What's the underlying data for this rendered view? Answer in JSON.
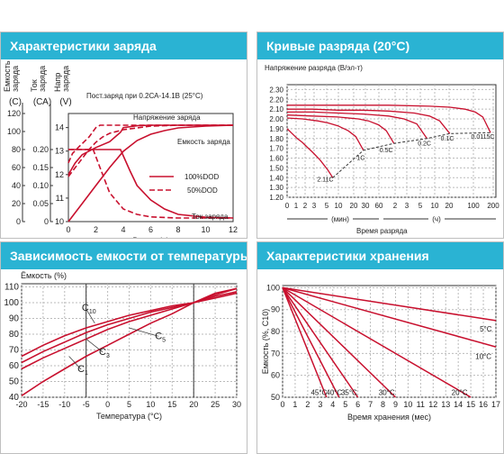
{
  "panels": {
    "p1": {
      "title": "Характеристики заряда"
    },
    "p2": {
      "title": "Кривые разряда (20°C)"
    },
    "p3": {
      "title": "Зависимость емкости от температуры"
    },
    "p4": {
      "title": "Характеристики хранения"
    }
  },
  "chart_data": [
    {
      "type": "line",
      "title": "Пост.заряд при 0.2СА-14.1В (25°С)",
      "xlabel": "Время (ч)",
      "x_ticks": [
        "0",
        "2",
        "4",
        "6",
        "8",
        "10",
        "12"
      ],
      "xlim": [
        0,
        12
      ],
      "axes": [
        {
          "label": "Емкость заряда (С)",
          "unit": "(С)",
          "ticks": [
            "0",
            "20",
            "40",
            "60",
            "80",
            "100",
            "120"
          ],
          "lim": [
            0,
            120
          ]
        },
        {
          "label": "Ток заряда (СА)",
          "unit": "(СА)",
          "ticks": [
            "0",
            "0.05",
            "0.10",
            "0.15",
            "0.20"
          ],
          "lim": [
            0,
            0.3
          ]
        },
        {
          "label": "Напр заряда (V)",
          "unit": "(V)",
          "ticks": [
            "10",
            "11",
            "12",
            "13",
            "14"
          ],
          "lim": [
            10,
            14.6
          ]
        }
      ],
      "annotations": [
        "Напряжение заряда",
        "Емкость заряда",
        "Ток заряда"
      ],
      "legend": {
        "entries": [
          "100%DOD",
          "50%DOD"
        ],
        "position": "center-right"
      },
      "series": [
        {
          "name": "100%DOD",
          "group": "Напряжение заряда",
          "x": [
            0,
            0.5,
            1,
            2,
            3,
            3.8,
            4,
            5,
            6,
            8,
            10,
            12
          ],
          "y": [
            12.0,
            12.5,
            12.85,
            13.15,
            13.4,
            13.8,
            14.0,
            14.08,
            14.1,
            14.1,
            14.1,
            14.1
          ]
        },
        {
          "name": "50%DOD",
          "group": "Напряжение заряда",
          "x": [
            0,
            0.3,
            0.8,
            1.5,
            2,
            2.3,
            3,
            4,
            6,
            8,
            12
          ],
          "y": [
            12.5,
            12.9,
            13.2,
            13.6,
            14.0,
            14.1,
            14.1,
            14.1,
            14.1,
            14.1,
            14.1
          ]
        },
        {
          "name": "100%DOD",
          "group": "Емкость заряда",
          "x": [
            0,
            1,
            2,
            3,
            4,
            5,
            6,
            7,
            8,
            10,
            12
          ],
          "y": [
            0,
            20,
            40,
            60,
            78,
            90,
            97,
            101,
            104,
            106,
            107
          ]
        },
        {
          "name": "50%DOD",
          "group": "Емкость заряда",
          "x": [
            0,
            0.5,
            1,
            1.5,
            2,
            2.5,
            3,
            4,
            5,
            6,
            8,
            12
          ],
          "y": [
            50,
            60,
            70,
            80,
            88,
            94,
            98,
            102,
            104,
            106,
            107,
            107
          ]
        },
        {
          "name": "100%DOD",
          "group": "Ток заряда",
          "x": [
            0,
            1,
            2,
            3,
            3.8,
            4.5,
            5,
            6,
            7,
            8,
            10,
            12
          ],
          "y": [
            0.2,
            0.2,
            0.2,
            0.2,
            0.2,
            0.14,
            0.1,
            0.06,
            0.035,
            0.02,
            0.012,
            0.01
          ]
        },
        {
          "name": "50%DOD",
          "group": "Ток заряда",
          "x": [
            0,
            1,
            1.8,
            2.3,
            3,
            4,
            5,
            6,
            8,
            12
          ],
          "y": [
            0.2,
            0.2,
            0.2,
            0.15,
            0.08,
            0.035,
            0.02,
            0.013,
            0.01,
            0.01
          ]
        }
      ]
    },
    {
      "type": "line",
      "ylabel": "Напряжение разряда (В/эл-т)",
      "xlabel": "Время разряда",
      "x_ticks": [
        "0",
        "1",
        "2",
        "3",
        "5",
        "10",
        "20",
        "30",
        "60",
        "2",
        "3",
        "5",
        "10",
        "20",
        "100",
        "200"
      ],
      "x_units": [
        "(мин)",
        "(ч)"
      ],
      "y_ticks": [
        "1.20",
        "1.30",
        "1.40",
        "1.50",
        "1.60",
        "1.70",
        "1.80",
        "1.90",
        "2.00",
        "2.10",
        "2.20",
        "2.30"
      ],
      "ylim": [
        1.2,
        2.35
      ],
      "series": [
        {
          "name": "2.11C",
          "x_pos": [
            0,
            1,
            2,
            3,
            4,
            5,
            6.5,
            8,
            9
          ],
          "y": [
            1.9,
            1.85,
            1.8,
            1.76,
            1.71,
            1.66,
            1.58,
            1.48,
            1.4
          ]
        },
        {
          "name": "1C",
          "x_pos": [
            0,
            3,
            6,
            8,
            10,
            12,
            13.5,
            15
          ],
          "y": [
            2.01,
            2.0,
            1.98,
            1.96,
            1.93,
            1.88,
            1.82,
            1.68
          ]
        },
        {
          "name": "0.5C",
          "x_pos": [
            0,
            5,
            10,
            14,
            16,
            18,
            19.5,
            21
          ],
          "y": [
            2.04,
            2.03,
            2.02,
            2.0,
            1.98,
            1.94,
            1.88,
            1.75
          ]
        },
        {
          "name": "0.2C",
          "x_pos": [
            0,
            5,
            10,
            15,
            20,
            23,
            25.5,
            27.5
          ],
          "y": [
            2.07,
            2.07,
            2.06,
            2.05,
            2.03,
            2.0,
            1.95,
            1.8
          ]
        },
        {
          "name": "0.1C",
          "x_pos": [
            0,
            5,
            10,
            15,
            20,
            25,
            28,
            30,
            32
          ],
          "y": [
            2.1,
            2.1,
            2.09,
            2.09,
            2.08,
            2.06,
            2.03,
            1.98,
            1.85
          ]
        },
        {
          "name": "0.0115C",
          "x_pos": [
            0,
            10,
            20,
            28,
            32,
            35,
            37,
            38.5,
            40
          ],
          "y": [
            2.14,
            2.14,
            2.14,
            2.13,
            2.12,
            2.1,
            2.07,
            2.02,
            1.86
          ]
        }
      ],
      "cutoff_line": {
        "x_pos": [
          9,
          15,
          21,
          27.5,
          32,
          40
        ],
        "y": [
          1.4,
          1.68,
          1.75,
          1.8,
          1.85,
          1.86
        ]
      }
    },
    {
      "type": "line",
      "ylabel": "Ёмкость (%)",
      "xlabel": "Температура (°С)",
      "x": [
        -20,
        -15,
        -10,
        -5,
        0,
        5,
        10,
        15,
        20,
        25,
        30
      ],
      "x_ticks": [
        "-20",
        "-15",
        "-10",
        "-5",
        "0",
        "5",
        "10",
        "15",
        "20",
        "25",
        "30"
      ],
      "y_ticks": [
        "40",
        "50",
        "60",
        "70",
        "80",
        "90",
        "100",
        "110"
      ],
      "xlim": [
        -20,
        30
      ],
      "ylim": [
        40,
        112
      ],
      "series": [
        {
          "name": "C10",
          "values": [
            66,
            73,
            79,
            84,
            88,
            92,
            95,
            98,
            100,
            103,
            106
          ]
        },
        {
          "name": "C5",
          "values": [
            62,
            69,
            75,
            81,
            86,
            90,
            94,
            97,
            100,
            104,
            107
          ]
        },
        {
          "name": "C3",
          "values": [
            58,
            65,
            71,
            77,
            83,
            88,
            92,
            96,
            100,
            105,
            109
          ]
        },
        {
          "name": "C1",
          "values": [
            41,
            50,
            58,
            66,
            73,
            80,
            87,
            93,
            100,
            106,
            109
          ]
        }
      ]
    },
    {
      "type": "line",
      "ylabel": "Емкость (%, С10)",
      "xlabel": "Время хранения (мес)",
      "x_ticks": [
        "0",
        "1",
        "2",
        "3",
        "4",
        "5",
        "6",
        "7",
        "8",
        "9",
        "10",
        "11",
        "12",
        "13",
        "14",
        "15",
        "16",
        "17"
      ],
      "y_ticks": [
        "50",
        "60",
        "70",
        "80",
        "90",
        "100"
      ],
      "xlim": [
        0,
        17
      ],
      "ylim": [
        50,
        101
      ],
      "series": [
        {
          "name": "5°С",
          "x": [
            0,
            17
          ],
          "y": [
            100,
            85
          ]
        },
        {
          "name": "10°С",
          "x": [
            0,
            17
          ],
          "y": [
            100,
            73
          ]
        },
        {
          "name": "20°С",
          "x": [
            0,
            15
          ],
          "y": [
            100,
            50
          ]
        },
        {
          "name": "30°С",
          "x": [
            0,
            9
          ],
          "y": [
            100,
            50
          ]
        },
        {
          "name": "35°С",
          "x": [
            0,
            6
          ],
          "y": [
            100,
            50
          ]
        },
        {
          "name": "40°С",
          "x": [
            0,
            4.5
          ],
          "y": [
            100,
            50
          ]
        },
        {
          "name": "45°С",
          "x": [
            0,
            3.5
          ],
          "y": [
            100,
            50
          ]
        }
      ]
    }
  ]
}
